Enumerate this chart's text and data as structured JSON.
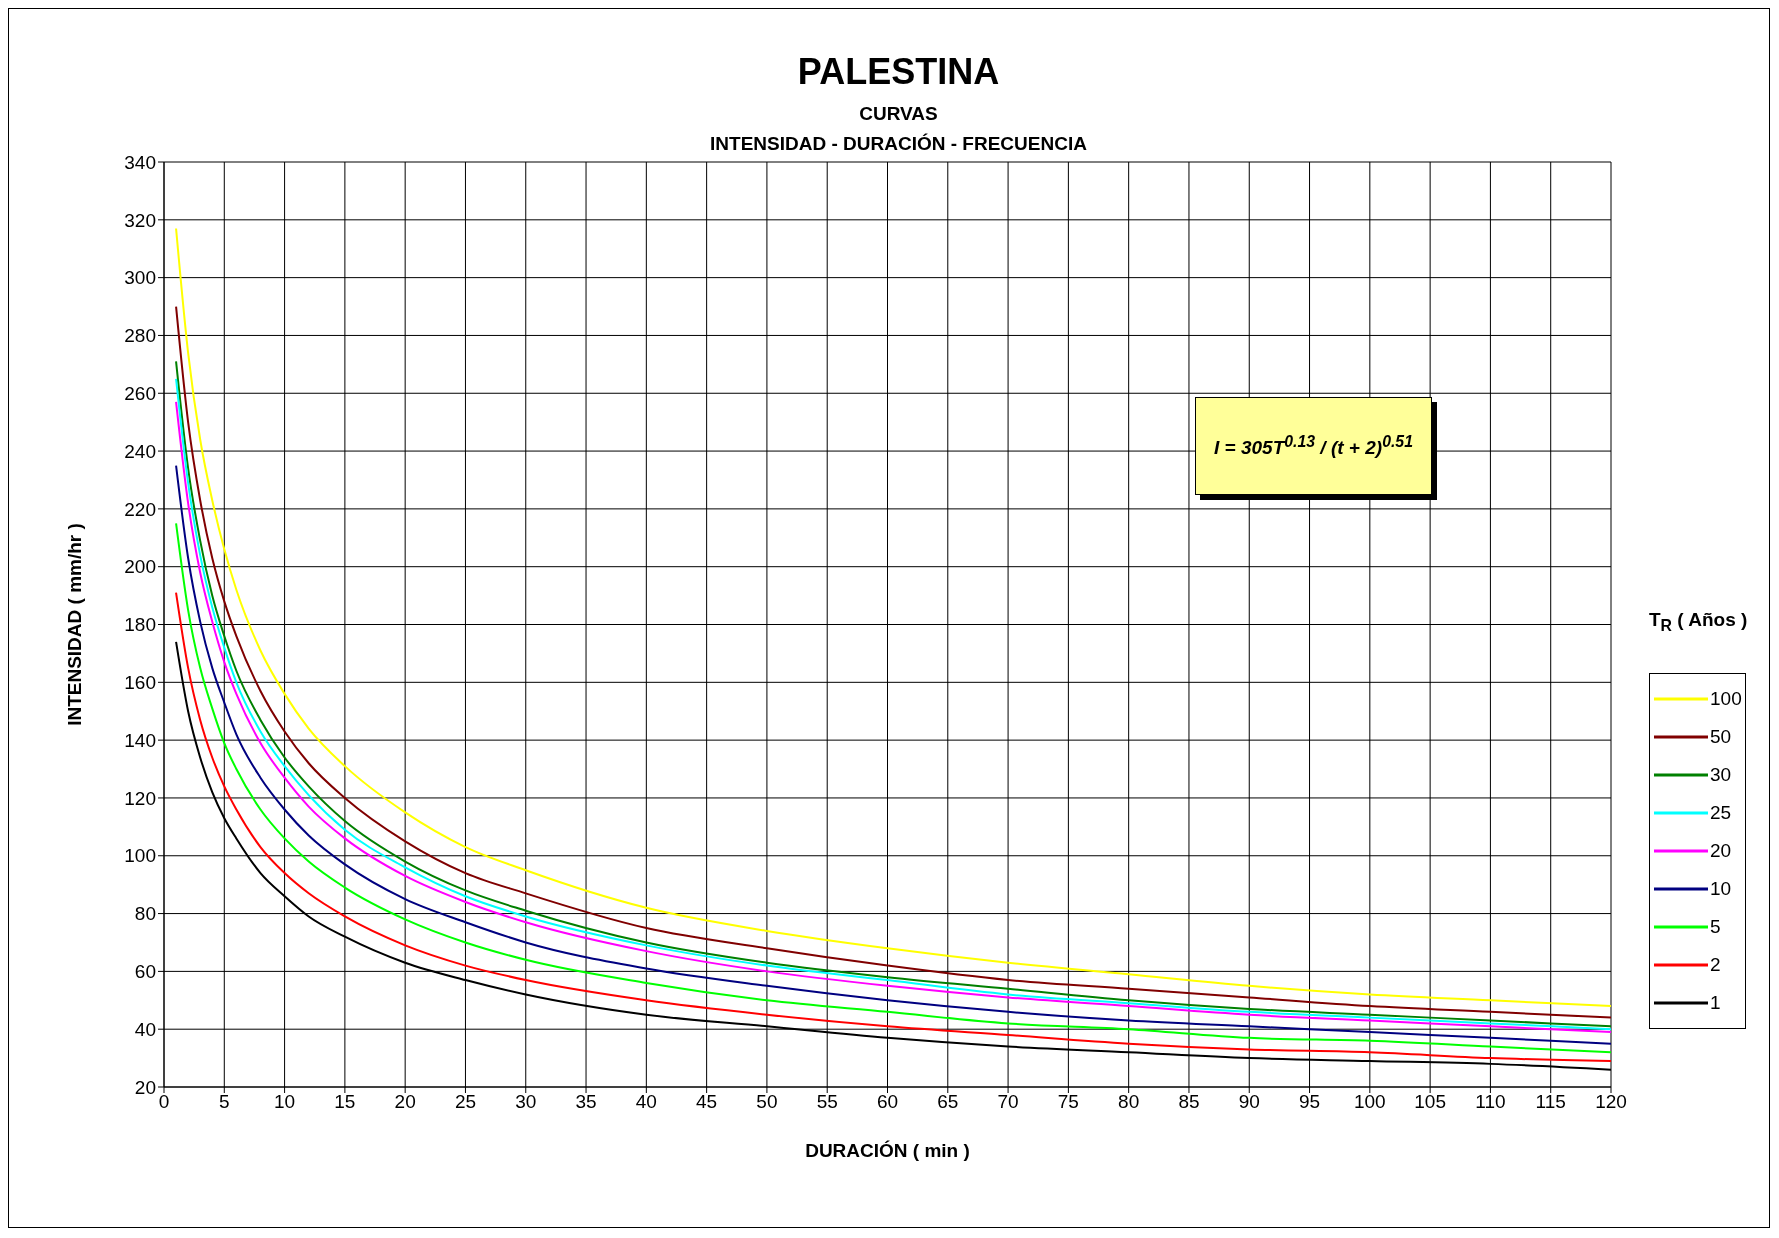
{
  "chart_data": {
    "type": "line",
    "title": "PALESTINA",
    "subtitle": "CURVAS\nINTENSIDAD - DURACIÓN - FRECUENCIA",
    "xlabel": "DURACIÓN ( min )",
    "ylabel": "INTENSIDAD ( mm/hr )",
    "legend_title": "T$_{R}$ ( Años )",
    "annotations": [
      "I = 305T$^{0.13}$ / (t + 2)$^{0.51}$"
    ],
    "x": [
      1,
      2,
      3,
      4,
      5,
      6,
      8,
      10,
      12,
      15,
      20,
      25,
      30,
      40,
      50,
      60,
      70,
      80,
      90,
      100,
      110,
      120
    ],
    "series": [
      {
        "name": "100",
        "color": "#ffff00",
        "values": [
          317,
          274,
          244,
          223,
          206,
          192,
          171,
          156,
          144,
          131,
          115,
          103,
          95,
          82,
          74,
          68,
          63,
          59,
          55,
          52,
          50,
          48
        ]
      },
      {
        "name": "50",
        "color": "#800000",
        "values": [
          290,
          250,
          223,
          203,
          188,
          176,
          157,
          143,
          132,
          120,
          105,
          94,
          87,
          75,
          68,
          62,
          57,
          54,
          51,
          48,
          46,
          44
        ]
      },
      {
        "name": "30",
        "color": "#008000",
        "values": [
          271,
          234,
          209,
          190,
          176,
          164,
          147,
          134,
          124,
          112,
          98,
          88,
          81,
          70,
          63,
          58,
          54,
          50,
          47,
          45,
          43,
          41
        ]
      },
      {
        "name": "25",
        "color": "#00ffff",
        "values": [
          265,
          229,
          204,
          186,
          172,
          160,
          143,
          131,
          121,
          109,
          96,
          86,
          79,
          69,
          62,
          57,
          52,
          49,
          46,
          44,
          42,
          40
        ]
      },
      {
        "name": "20",
        "color": "#ff00ff",
        "values": [
          257,
          222,
          198,
          181,
          167,
          156,
          139,
          127,
          117,
          106,
          93,
          84,
          77,
          67,
          60,
          55,
          51,
          48,
          45,
          43,
          41,
          39
        ]
      },
      {
        "name": "10",
        "color": "#000080",
        "values": [
          235,
          203,
          181,
          165,
          153,
          142,
          127,
          116,
          107,
          97,
          85,
          77,
          70,
          61,
          55,
          50,
          46,
          43,
          41,
          39,
          37,
          35
        ]
      },
      {
        "name": "5",
        "color": "#00ff00",
        "values": [
          215,
          185,
          165,
          151,
          139,
          130,
          116,
          106,
          98,
          89,
          78,
          70,
          64,
          56,
          50,
          46,
          42,
          40,
          37,
          36,
          34,
          32
        ]
      },
      {
        "name": "2",
        "color": "#ff0000",
        "values": [
          191,
          165,
          147,
          134,
          124,
          116,
          103,
          94,
          87,
          79,
          69,
          62,
          57,
          50,
          45,
          41,
          38,
          35,
          33,
          32,
          30,
          29
        ]
      },
      {
        "name": "1",
        "color": "#000000",
        "values": [
          174,
          150,
          134,
          122,
          113,
          106,
          94,
          86,
          79,
          72,
          63,
          57,
          52,
          45,
          41,
          37,
          34,
          32,
          30,
          29,
          28,
          26
        ]
      }
    ],
    "xlim": [
      0,
      120
    ],
    "xticks": [
      0,
      5,
      10,
      15,
      20,
      25,
      30,
      35,
      40,
      45,
      50,
      55,
      60,
      65,
      70,
      75,
      80,
      85,
      90,
      95,
      100,
      105,
      110,
      115,
      120
    ],
    "ylim": [
      20,
      340
    ],
    "yticks": [
      20,
      40,
      60,
      80,
      100,
      120,
      140,
      160,
      180,
      200,
      220,
      240,
      260,
      280,
      300,
      320,
      340
    ],
    "grid": true,
    "legend": "right",
    "marker": "none",
    "line_style": "solid"
  }
}
